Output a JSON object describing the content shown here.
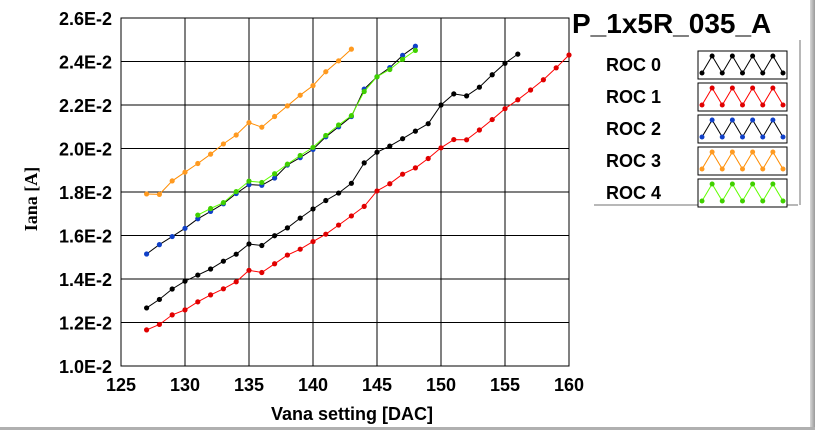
{
  "chart_data": {
    "type": "line",
    "title": "P_1x5R_035_A",
    "xlabel": "Vana setting [DAC]",
    "ylabel": "Iana [A]",
    "xlim": [
      125,
      160
    ],
    "ylim": [
      0.01,
      0.026
    ],
    "x_ticks": [
      125,
      130,
      135,
      140,
      145,
      150,
      155,
      160
    ],
    "y_ticks": [
      0.01,
      0.012,
      0.014,
      0.016,
      0.018,
      0.02,
      0.022,
      0.024,
      0.026
    ],
    "x_tick_labels": [
      "125",
      "130",
      "135",
      "140",
      "145",
      "150",
      "155",
      "160"
    ],
    "y_tick_labels": [
      "1.0E-2",
      "1.2E-2",
      "1.4E-2",
      "1.6E-2",
      "1.8E-2",
      "2.0E-2",
      "2.2E-2",
      "2.4E-2",
      "2.6E-2"
    ],
    "grid": true,
    "legend_position": "right",
    "series": [
      {
        "name": "ROC 0",
        "line_color": "#000000",
        "marker_color": "#000000",
        "x": [
          127,
          128,
          129,
          130,
          131,
          132,
          133,
          134,
          135,
          136,
          137,
          138,
          139,
          140,
          141,
          142,
          143,
          144,
          145,
          146,
          147,
          148,
          149,
          150,
          151,
          152,
          153,
          154,
          155,
          156
        ],
        "y": [
          0.01267,
          0.01306,
          0.01354,
          0.0139,
          0.01418,
          0.01446,
          0.01482,
          0.01514,
          0.01561,
          0.01554,
          0.01599,
          0.01635,
          0.0168,
          0.01722,
          0.01761,
          0.01795,
          0.0184,
          0.01934,
          0.01983,
          0.02011,
          0.02045,
          0.0208,
          0.02114,
          0.022,
          0.02251,
          0.02242,
          0.02282,
          0.02339,
          0.02392,
          0.02434
        ]
      },
      {
        "name": "ROC 1",
        "line_color": "#ff0000",
        "marker_color": "#e00000",
        "x": [
          127,
          128,
          129,
          130,
          131,
          132,
          133,
          134,
          135,
          136,
          137,
          138,
          139,
          140,
          141,
          142,
          143,
          144,
          145,
          146,
          147,
          148,
          149,
          150,
          151,
          152,
          153,
          154,
          155,
          156,
          157,
          158,
          159,
          160
        ],
        "y": [
          0.01166,
          0.01191,
          0.01235,
          0.01258,
          0.01295,
          0.01327,
          0.01355,
          0.01387,
          0.0144,
          0.0143,
          0.0147,
          0.0151,
          0.01537,
          0.01572,
          0.01606,
          0.01648,
          0.0169,
          0.01734,
          0.01805,
          0.01838,
          0.01882,
          0.01911,
          0.01954,
          0.02003,
          0.02041,
          0.0204,
          0.02085,
          0.02133,
          0.02183,
          0.02224,
          0.02269,
          0.02316,
          0.02371,
          0.0243
        ]
      },
      {
        "name": "ROC 2",
        "line_color": "#000000",
        "marker_color": "#1040c8",
        "x": [
          127,
          128,
          129,
          130,
          131,
          132,
          133,
          134,
          135,
          136,
          137,
          138,
          139,
          140,
          141,
          142,
          143,
          144,
          145,
          146,
          147,
          148
        ],
        "y": [
          0.01515,
          0.01558,
          0.01595,
          0.01633,
          0.01677,
          0.01711,
          0.01746,
          0.01793,
          0.01834,
          0.01831,
          0.01864,
          0.01924,
          0.01958,
          0.01996,
          0.02054,
          0.021,
          0.02147,
          0.02273,
          0.0233,
          0.02372,
          0.02428,
          0.0247
        ]
      },
      {
        "name": "ROC 3",
        "line_color": "#ff8c00",
        "marker_color": "#ff9a20",
        "x": [
          127,
          128,
          129,
          130,
          131,
          132,
          133,
          134,
          135,
          136,
          137,
          138,
          139,
          140,
          141,
          142,
          143
        ],
        "y": [
          0.01791,
          0.01789,
          0.01851,
          0.01891,
          0.01931,
          0.01974,
          0.02021,
          0.02062,
          0.02119,
          0.02098,
          0.02147,
          0.02196,
          0.02245,
          0.02289,
          0.02353,
          0.02403,
          0.02457
        ]
      },
      {
        "name": "ROC 4",
        "line_color": "#60ff00",
        "marker_color": "#40d000",
        "x": [
          131,
          132,
          133,
          134,
          135,
          136,
          137,
          138,
          139,
          140,
          141,
          142,
          143,
          144,
          145,
          146,
          147,
          148
        ],
        "y": [
          0.01694,
          0.01724,
          0.01751,
          0.01802,
          0.0185,
          0.01844,
          0.01884,
          0.01928,
          0.01968,
          0.02005,
          0.0206,
          0.02108,
          0.02151,
          0.02262,
          0.0233,
          0.02363,
          0.0241,
          0.02451
        ]
      }
    ]
  }
}
